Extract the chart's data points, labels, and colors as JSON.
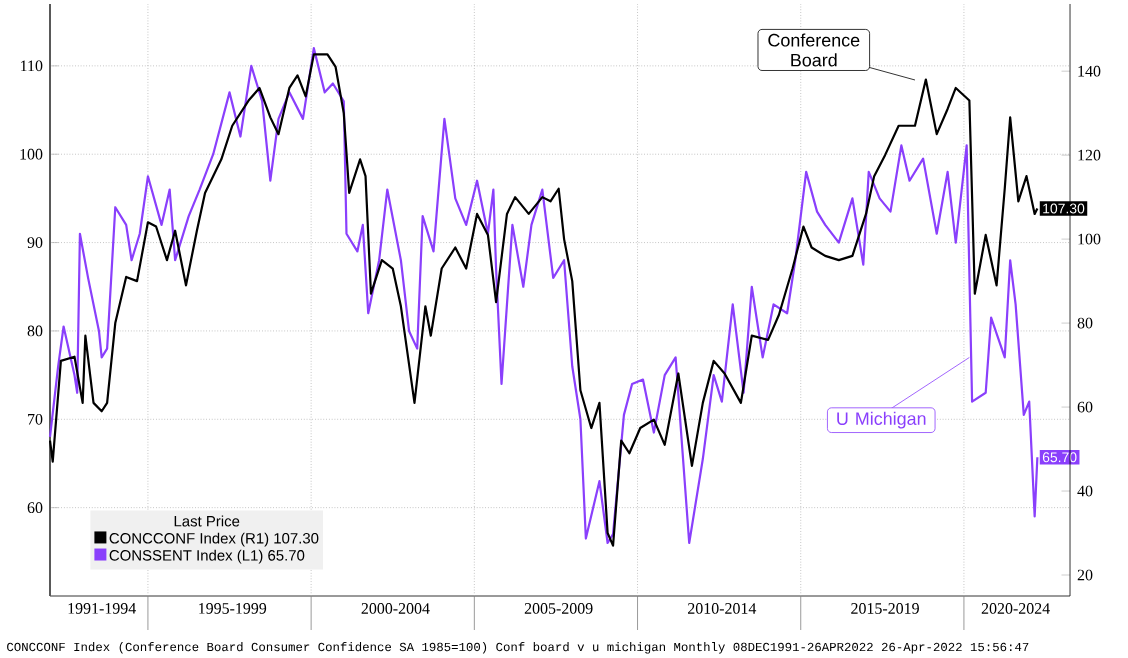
{
  "chart_data": {
    "type": "line",
    "legend_title": "Last Price",
    "legend": "bottom left",
    "grid": true,
    "xlim": [
      "1992-01",
      "2023-04"
    ],
    "xticks": [
      {
        "value": "1993-08",
        "label": "1991-1994"
      },
      {
        "value": "1997-08",
        "label": "1995-1999"
      },
      {
        "value": "2002-08",
        "label": "2000-2004"
      },
      {
        "value": "2007-08",
        "label": "2005-2009"
      },
      {
        "value": "2012-08",
        "label": "2010-2014"
      },
      {
        "value": "2017-08",
        "label": "2015-2019"
      },
      {
        "value": "2021-08",
        "label": "2020-2024"
      },
      {
        "value": "1995-01",
        "label": null
      },
      {
        "value": "2000-01",
        "label": null
      },
      {
        "value": "2005-01",
        "label": null
      },
      {
        "value": "2010-01",
        "label": null
      },
      {
        "value": "2015-01",
        "label": null
      },
      {
        "value": "2020-01",
        "label": null
      }
    ],
    "ylim": [
      50,
      117
    ],
    "yticks": [
      60,
      70,
      80,
      90,
      100,
      110
    ],
    "y2lim": [
      15,
      156
    ],
    "y2ticks": [
      20,
      40,
      60,
      80,
      100,
      120,
      140
    ],
    "annotations": [
      "Conference Board",
      {
        "text": "U Michigan",
        "x": "2020-03",
        "y": 77
      },
      "CONCCONF Index (Conference Board Consumer Confidence SA 1985=100) Conf board v u michigan  Monthly 08DEC1991-26APR2022  26-Apr-2022 15:56:47"
    ],
    "series": [
      {
        "name": "CONCCONF Index  (R1) 107.30",
        "color": "#000000",
        "axis": "y2",
        "x": [
          "1992-01",
          "1992-02",
          "1992-05",
          "1992-10",
          "1993-01",
          "1993-02",
          "1993-05",
          "1993-08",
          "1993-10",
          "1994-01",
          "1994-05",
          "1994-09",
          "1995-01",
          "1995-04",
          "1995-08",
          "1995-11",
          "1996-03",
          "1996-07",
          "1996-10",
          "1997-04",
          "1997-08",
          "1998-02",
          "1998-06",
          "1998-10",
          "1999-01",
          "1999-05",
          "1999-08",
          "1999-11",
          "2000-02",
          "2000-07",
          "2000-10",
          "2001-01",
          "2001-03",
          "2001-07",
          "2001-09",
          "2001-11",
          "2002-03",
          "2002-07",
          "2002-10",
          "2003-03",
          "2003-07",
          "2003-09",
          "2004-01",
          "2004-06",
          "2004-10",
          "2005-02",
          "2005-06",
          "2005-09",
          "2006-01",
          "2006-04",
          "2006-09",
          "2007-02",
          "2007-05",
          "2007-08",
          "2007-10",
          "2008-01",
          "2008-04",
          "2008-08",
          "2008-11",
          "2009-02",
          "2009-04",
          "2009-07",
          "2009-10",
          "2010-02",
          "2010-07",
          "2010-11",
          "2011-04",
          "2011-09",
          "2012-01",
          "2012-05",
          "2012-09",
          "2013-03",
          "2013-07",
          "2014-01",
          "2014-05",
          "2014-10",
          "2015-02",
          "2015-05",
          "2015-10",
          "2016-03",
          "2016-08",
          "2017-01",
          "2017-04",
          "2017-08",
          "2018-01",
          "2018-07",
          "2018-11",
          "2019-03",
          "2019-07",
          "2019-10",
          "2020-03",
          "2020-05",
          "2020-09",
          "2021-01",
          "2021-04",
          "2021-06",
          "2021-09",
          "2021-12",
          "2022-03",
          "2022-04"
        ],
        "values": [
          52,
          47,
          71,
          72,
          61,
          77,
          61,
          59,
          61,
          80,
          91,
          90,
          104,
          103,
          95,
          102,
          89,
          102,
          111,
          119,
          127,
          133,
          136,
          129,
          125,
          136,
          139,
          134,
          144,
          144,
          141,
          130,
          111,
          119,
          115,
          87,
          95,
          93,
          84,
          61,
          84,
          77,
          93,
          98,
          93,
          106,
          101,
          85,
          106,
          110,
          106,
          110,
          109,
          112,
          100,
          90,
          64,
          55,
          61,
          30,
          27,
          52,
          49,
          55,
          57,
          51,
          68,
          46,
          61,
          71,
          68,
          61,
          77,
          76,
          82,
          93,
          103,
          98,
          96,
          95,
          96,
          106,
          115,
          120,
          127,
          127,
          138,
          125,
          131,
          136,
          133,
          87,
          101,
          89,
          112,
          129,
          109,
          115,
          106,
          107.3
        ],
        "value_labels": [
          null,
          null,
          null,
          null,
          null,
          null,
          null,
          null,
          null,
          null,
          null,
          null,
          null,
          null,
          null,
          null,
          null,
          null,
          null,
          null,
          null,
          null,
          null,
          null,
          null,
          null,
          null,
          null,
          null,
          null,
          null,
          null,
          null,
          null,
          null,
          null,
          null,
          null,
          null,
          null,
          null,
          null,
          null,
          null,
          null,
          null,
          null,
          null,
          null,
          null,
          null,
          null,
          null,
          null,
          null,
          null,
          null,
          null,
          null,
          null,
          null,
          null,
          null,
          null,
          null,
          null,
          null,
          null,
          null,
          null,
          null,
          null,
          null,
          null,
          null,
          null,
          null,
          null,
          null,
          null,
          null,
          null,
          null,
          null,
          null,
          null,
          null,
          null,
          null,
          null,
          null,
          null,
          null,
          null,
          null,
          null,
          null,
          null,
          null,
          "107.30"
        ]
      },
      {
        "name": "CONSSENT Index  (L1) 65.70",
        "color": "#8a3ffc",
        "x": [
          "1992-01",
          "1992-04",
          "1992-06",
          "1992-10",
          "1992-11",
          "1992-12",
          "1993-03",
          "1993-07",
          "1993-08",
          "1993-10",
          "1994-01",
          "1994-05",
          "1994-07",
          "1994-10",
          "1995-01",
          "1995-06",
          "1995-09",
          "1995-11",
          "1996-04",
          "1996-08",
          "1997-01",
          "1997-07",
          "1997-11",
          "1998-03",
          "1998-07",
          "1998-10",
          "1999-01",
          "1999-05",
          "1999-10",
          "2000-02",
          "2000-06",
          "2000-09",
          "2001-01",
          "2001-02",
          "2001-06",
          "2001-08",
          "2001-10",
          "2002-02",
          "2002-05",
          "2002-10",
          "2003-01",
          "2003-04",
          "2003-06",
          "2003-10",
          "2004-02",
          "2004-06",
          "2004-10",
          "2005-02",
          "2005-06",
          "2005-08",
          "2005-09",
          "2005-11",
          "2006-03",
          "2006-07",
          "2006-10",
          "2007-02",
          "2007-06",
          "2007-10",
          "2008-01",
          "2008-04",
          "2008-06",
          "2008-11",
          "2009-02",
          "2009-04",
          "2009-08",
          "2009-11",
          "2010-03",
          "2010-07",
          "2010-11",
          "2011-03",
          "2011-08",
          "2012-01",
          "2012-05",
          "2012-08",
          "2012-12",
          "2013-04",
          "2013-07",
          "2013-11",
          "2014-03",
          "2014-08",
          "2014-11",
          "2015-03",
          "2015-07",
          "2015-10",
          "2016-03",
          "2016-08",
          "2016-12",
          "2017-02",
          "2017-06",
          "2017-10",
          "2018-02",
          "2018-05",
          "2018-10",
          "2019-03",
          "2019-07",
          "2019-10",
          "2020-02",
          "2020-04",
          "2020-09",
          "2020-11",
          "2021-04",
          "2021-06",
          "2021-08",
          "2021-11",
          "2022-01",
          "2022-03",
          "2022-04"
        ],
        "values": [
          68,
          76,
          80.5,
          75,
          73,
          91,
          86,
          80,
          77,
          78,
          94,
          92,
          88,
          91,
          97.5,
          92,
          96,
          88,
          93,
          96,
          100,
          107,
          102,
          110,
          106,
          97,
          104,
          107,
          104,
          112,
          107,
          108,
          106,
          91,
          89,
          92,
          82,
          88,
          96,
          88,
          80,
          78,
          93,
          89,
          104,
          95,
          92,
          97,
          91,
          96,
          87,
          74,
          92,
          85,
          92,
          96,
          86,
          88,
          76,
          70,
          56.5,
          63,
          56,
          57,
          70.5,
          74,
          74.5,
          68.5,
          75,
          77,
          56,
          65.5,
          75,
          72,
          83,
          73,
          85,
          77,
          83,
          82,
          88,
          98,
          93.5,
          92,
          90,
          95,
          87.5,
          98,
          95,
          93.5,
          101,
          97,
          99.5,
          91,
          98,
          90,
          101,
          72,
          73,
          81.5,
          77,
          88,
          83,
          70.5,
          72,
          59,
          65.7
        ],
        "value_labels": [
          null,
          null,
          null,
          null,
          null,
          null,
          null,
          null,
          null,
          null,
          null,
          null,
          null,
          null,
          null,
          null,
          null,
          null,
          null,
          null,
          null,
          null,
          null,
          null,
          null,
          null,
          null,
          null,
          null,
          null,
          null,
          null,
          null,
          null,
          null,
          null,
          null,
          null,
          null,
          null,
          null,
          null,
          null,
          null,
          null,
          null,
          null,
          null,
          null,
          null,
          null,
          null,
          null,
          null,
          null,
          null,
          null,
          null,
          null,
          null,
          null,
          null,
          null,
          null,
          null,
          null,
          null,
          null,
          null,
          null,
          null,
          null,
          null,
          null,
          null,
          null,
          null,
          null,
          null,
          null,
          null,
          null,
          null,
          null,
          null,
          null,
          null,
          null,
          null,
          null,
          null,
          null,
          null,
          null,
          null,
          null,
          null,
          null,
          null,
          null,
          null,
          null,
          null,
          null,
          null,
          null,
          "65.70"
        ]
      }
    ]
  }
}
